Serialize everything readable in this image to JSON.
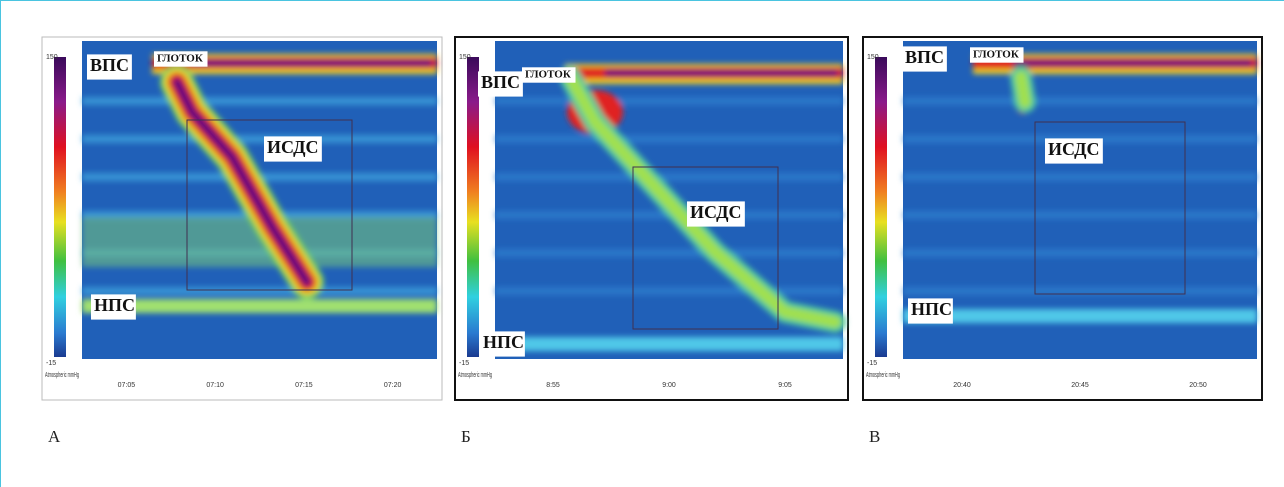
{
  "panels": [
    {
      "letter": "А",
      "colorbar": {
        "max": "150",
        "min": "-15",
        "unit": "Atmospheric mmHg"
      },
      "times": [
        "07:05",
        "07:10",
        "07:15",
        "07:20"
      ],
      "labels": {
        "upper": "ВПС",
        "pharynx": "ГЛОТОК",
        "body": "ИСДС",
        "lower": "НПС"
      }
    },
    {
      "letter": "Б",
      "colorbar": {
        "max": "150",
        "min": "-15",
        "unit": "Atmospheric mmHg"
      },
      "times": [
        "8:55",
        "9:00",
        "9:05"
      ],
      "labels": {
        "upper": "ВПС",
        "pharynx": "ГЛОТОК",
        "body": "ИСДС",
        "lower": "НПС"
      }
    },
    {
      "letter": "В",
      "colorbar": {
        "max": "150",
        "min": "-15",
        "unit": "Atmospheric mmHg"
      },
      "times": [
        "20:40",
        "20:45",
        "20:50"
      ],
      "labels": {
        "upper": "ВПС",
        "pharynx": "ГЛОТОК",
        "body": "ИСДС",
        "lower": "НПС"
      }
    }
  ]
}
